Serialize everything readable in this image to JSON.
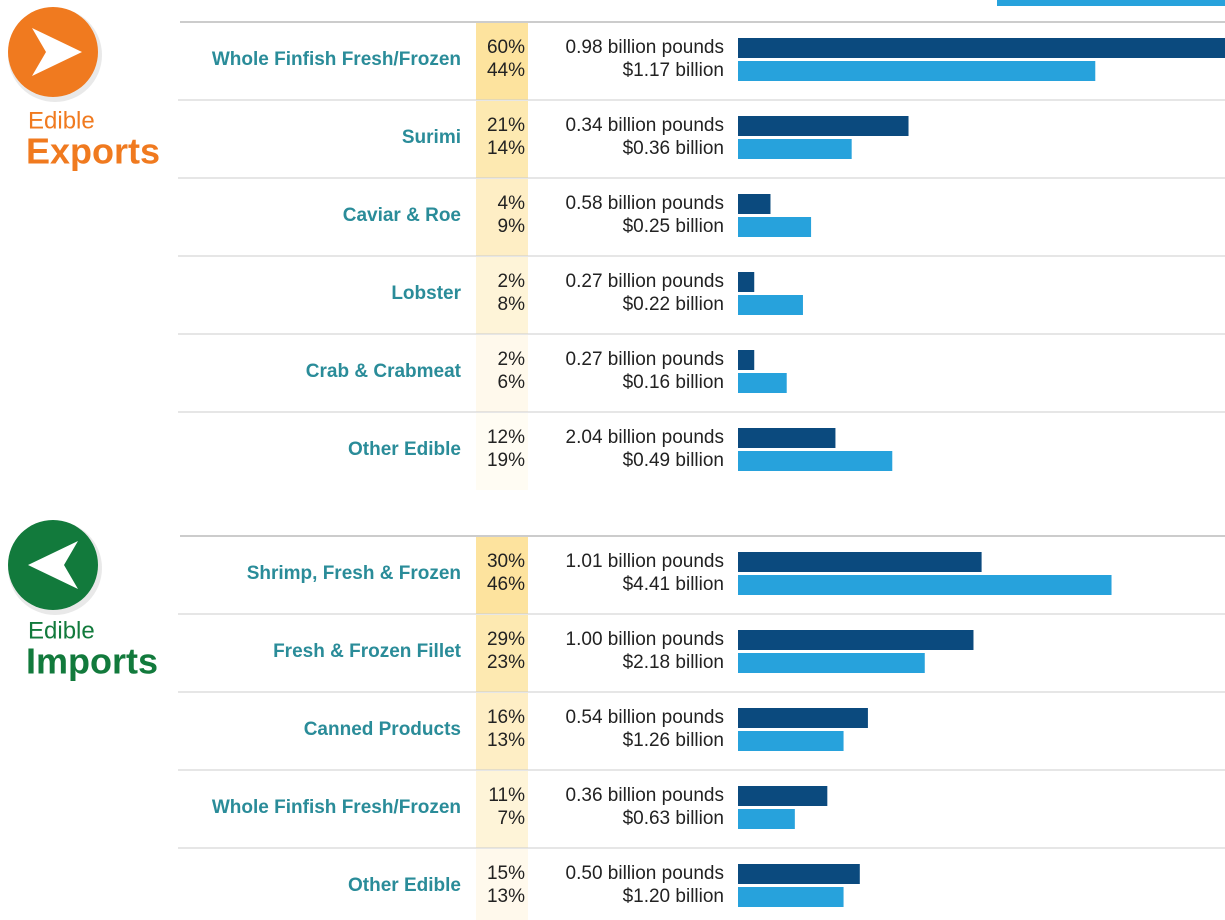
{
  "sections": [
    {
      "title_small": "Edible",
      "title_big": "Exports",
      "rows": [
        {
          "category": "Whole Finfish Fresh/Frozen",
          "volume_share": 60,
          "volume_share_label": "60%",
          "value_share": 44,
          "value_share_label": "44%",
          "volume": "0.98 billion pounds",
          "value": "$1.17 billion"
        },
        {
          "category": "Surimi",
          "volume_share": 21,
          "volume_share_label": "21%",
          "value_share": 14,
          "value_share_label": "14%",
          "volume": "0.34 billion pounds",
          "value": "$0.36 billion"
        },
        {
          "category": "Caviar & Roe",
          "volume_share": 4,
          "volume_share_label": "4%",
          "value_share": 9,
          "value_share_label": "9%",
          "volume": "0.58 billion pounds",
          "value": "$0.25 billion"
        },
        {
          "category": "Lobster",
          "volume_share": 2,
          "volume_share_label": "2%",
          "value_share": 8,
          "value_share_label": "8%",
          "volume": "0.27 billion pounds",
          "value": "$0.22 billion"
        },
        {
          "category": "Crab & Crabmeat",
          "volume_share": 2,
          "volume_share_label": "2%",
          "value_share": 6,
          "value_share_label": "6%",
          "volume": "0.27 billion pounds",
          "value": "$0.16 billion"
        },
        {
          "category": "Other Edible",
          "volume_share": 12,
          "volume_share_label": "12%",
          "value_share": 19,
          "value_share_label": "19%",
          "volume": "2.04 billion pounds",
          "value": "$0.49 billion"
        }
      ]
    },
    {
      "title_small": "Edible",
      "title_big": "Imports",
      "rows": [
        {
          "category": "Shrimp, Fresh & Frozen",
          "volume_share": 30,
          "volume_share_label": "30%",
          "value_share": 46,
          "value_share_label": "46%",
          "volume": "1.01 billion pounds",
          "value": "$4.41 billion"
        },
        {
          "category": "Fresh & Frozen Fillet",
          "volume_share": 29,
          "volume_share_label": "29%",
          "value_share": 23,
          "value_share_label": "23%",
          "volume": "1.00 billion pounds",
          "value": "$2.18 billion"
        },
        {
          "category": "Canned Products",
          "volume_share": 16,
          "volume_share_label": "16%",
          "value_share": 13,
          "value_share_label": "13%",
          "volume": "0.54 billion pounds",
          "value": "$1.26 billion"
        },
        {
          "category": "Whole Finfish Fresh/Frozen",
          "volume_share": 11,
          "volume_share_label": "11%",
          "value_share": 7,
          "value_share_label": "7%",
          "volume": "0.36 billion pounds",
          "value": "$0.63 billion"
        },
        {
          "category": "Other Edible",
          "volume_share": 15,
          "volume_share_label": "15%",
          "value_share": 13,
          "value_share_label": "13%",
          "volume": "0.50 billion pounds",
          "value": "$1.20 billion"
        }
      ]
    }
  ]
}
